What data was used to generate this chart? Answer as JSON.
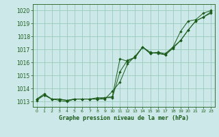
{
  "title": "Graphe pression niveau de la mer (hPa)",
  "bg_color": "#cce8e8",
  "grid_color": "#99ccbb",
  "line_color": "#1a5c1a",
  "marker_color": "#1a5c1a",
  "xlim": [
    -0.5,
    23.5
  ],
  "ylim": [
    1012.6,
    1020.5
  ],
  "xticks": [
    0,
    1,
    2,
    3,
    4,
    5,
    6,
    7,
    8,
    9,
    10,
    11,
    12,
    13,
    14,
    15,
    16,
    17,
    18,
    19,
    20,
    21,
    22,
    23
  ],
  "yticks": [
    1013,
    1014,
    1015,
    1016,
    1017,
    1018,
    1019,
    1020
  ],
  "series": [
    [
      1013.2,
      1013.6,
      1013.2,
      1013.2,
      1013.1,
      1013.2,
      1013.2,
      1013.2,
      1013.2,
      1013.3,
      1013.4,
      1016.3,
      1016.1,
      1016.4,
      1017.2,
      1016.7,
      1016.8,
      1016.6,
      1017.2,
      1017.7,
      1018.5,
      1019.2,
      1019.5,
      1019.9
    ],
    [
      1013.2,
      1013.5,
      1013.2,
      1013.2,
      1013.1,
      1013.2,
      1013.2,
      1013.2,
      1013.2,
      1013.2,
      1013.8,
      1014.5,
      1015.9,
      1016.5,
      1017.2,
      1016.7,
      1016.8,
      1016.7,
      1017.2,
      1018.4,
      1019.2,
      1019.3,
      1019.8,
      1020.0
    ],
    [
      1013.1,
      1013.5,
      1013.2,
      1013.1,
      1013.0,
      1013.2,
      1013.2,
      1013.2,
      1013.3,
      1013.3,
      1013.3,
      1015.3,
      1016.2,
      1016.4,
      1017.2,
      1016.8,
      1016.7,
      1016.6,
      1017.1,
      1017.7,
      1018.5,
      1019.2,
      1019.5,
      1019.8
    ]
  ]
}
